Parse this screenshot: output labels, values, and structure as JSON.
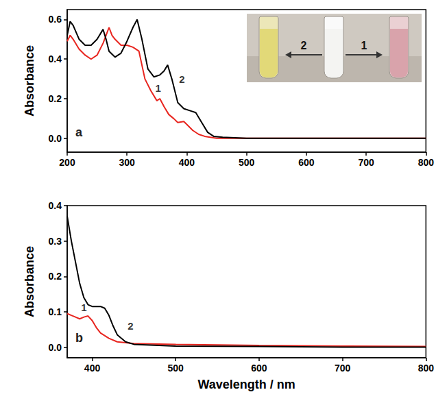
{
  "chart_data": [
    {
      "type": "line",
      "panel": "a",
      "ylabel": "Absorbance",
      "xlim": [
        200,
        800
      ],
      "xticks": [
        200,
        300,
        400,
        500,
        600,
        700,
        800
      ],
      "ylim": [
        -0.07,
        0.65
      ],
      "yticks": [
        {
          "value": 0,
          "label": "0.0"
        },
        0.2,
        0.4,
        0.6
      ],
      "grid": false,
      "series": [
        {
          "name": "1",
          "color": "#e8251f",
          "x": [
            200,
            205,
            210,
            220,
            230,
            240,
            250,
            260,
            265,
            270,
            275,
            280,
            290,
            300,
            310,
            320,
            330,
            340,
            350,
            355,
            362,
            370,
            378,
            385,
            395,
            400,
            410,
            420,
            430,
            450,
            500,
            600,
            700,
            800
          ],
          "values": [
            0.49,
            0.52,
            0.5,
            0.45,
            0.42,
            0.4,
            0.42,
            0.48,
            0.52,
            0.56,
            0.52,
            0.5,
            0.47,
            0.47,
            0.46,
            0.44,
            0.3,
            0.24,
            0.19,
            0.2,
            0.16,
            0.12,
            0.1,
            0.08,
            0.085,
            0.07,
            0.04,
            0.02,
            0.01,
            0,
            0,
            0,
            0,
            0
          ]
        },
        {
          "name": "2",
          "color": "#000000",
          "x": [
            200,
            205,
            210,
            220,
            230,
            240,
            250,
            260,
            265,
            270,
            280,
            290,
            300,
            310,
            317,
            325,
            335,
            345,
            355,
            362,
            368,
            375,
            385,
            395,
            405,
            415,
            425,
            435,
            445,
            460,
            500,
            600,
            700,
            800
          ],
          "values": [
            0.52,
            0.59,
            0.57,
            0.5,
            0.47,
            0.47,
            0.5,
            0.55,
            0.5,
            0.44,
            0.41,
            0.43,
            0.49,
            0.56,
            0.6,
            0.5,
            0.35,
            0.31,
            0.32,
            0.34,
            0.37,
            0.3,
            0.18,
            0.15,
            0.14,
            0.13,
            0.08,
            0.03,
            0.01,
            0.005,
            0,
            0,
            0,
            0
          ]
        }
      ],
      "annotations": [
        {
          "text": "1",
          "x": 352,
          "y": 0.255
        },
        {
          "text": "2",
          "x": 392,
          "y": 0.3
        }
      ]
    },
    {
      "type": "line",
      "panel": "b",
      "xlabel": "Wavelength / nm",
      "ylabel": "Absorbance",
      "xlim": [
        370,
        800
      ],
      "xticks": [
        400,
        500,
        600,
        700,
        800
      ],
      "ylim": [
        -0.03,
        0.4
      ],
      "yticks": [
        {
          "value": 0,
          "label": "0.0"
        },
        0.1,
        0.2,
        0.3,
        0.4
      ],
      "grid": false,
      "series": [
        {
          "name": "1",
          "color": "#e8251f",
          "x": [
            370,
            375,
            380,
            385,
            390,
            395,
            400,
            405,
            410,
            420,
            430,
            450,
            500,
            600,
            700,
            800
          ],
          "values": [
            0.095,
            0.09,
            0.085,
            0.08,
            0.085,
            0.088,
            0.075,
            0.055,
            0.04,
            0.025,
            0.015,
            0.01,
            0.008,
            0.005,
            0.003,
            0.002
          ]
        },
        {
          "name": "2",
          "color": "#000000",
          "x": [
            370,
            375,
            380,
            385,
            390,
            395,
            400,
            410,
            415,
            420,
            425,
            430,
            440,
            450,
            500,
            600,
            700,
            800
          ],
          "values": [
            0.37,
            0.3,
            0.24,
            0.18,
            0.14,
            0.12,
            0.115,
            0.115,
            0.11,
            0.09,
            0.06,
            0.035,
            0.015,
            0.008,
            0.003,
            0.002,
            0,
            0
          ]
        }
      ],
      "annotations": [
        {
          "text": "1",
          "x": 390,
          "y": 0.112
        },
        {
          "text": "2",
          "x": 446,
          "y": 0.06
        }
      ]
    }
  ],
  "inset": {
    "arrow_labels": [
      "2",
      "1"
    ]
  }
}
